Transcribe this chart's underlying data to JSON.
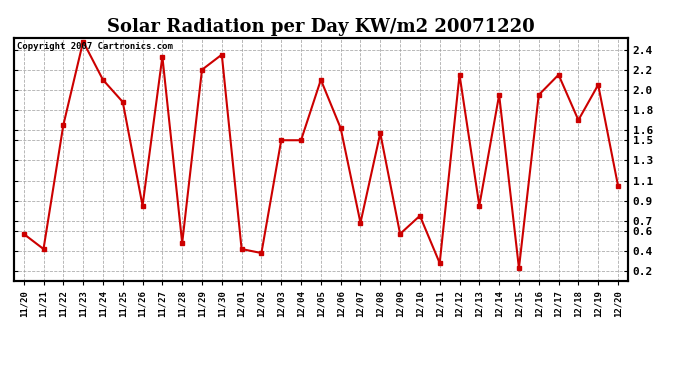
{
  "title": "Solar Radiation per Day KW/m2 20071220",
  "copyright_text": "Copyright 2007 Cartronics.com",
  "x_labels": [
    "11/20",
    "11/21",
    "11/22",
    "11/23",
    "11/24",
    "11/25",
    "11/26",
    "11/27",
    "11/28",
    "11/29",
    "11/30",
    "12/01",
    "12/02",
    "12/03",
    "12/04",
    "12/05",
    "12/06",
    "12/07",
    "12/08",
    "12/09",
    "12/10",
    "12/11",
    "12/12",
    "12/13",
    "12/14",
    "12/15",
    "12/16",
    "12/17",
    "12/18",
    "12/19",
    "12/20"
  ],
  "y_values": [
    0.57,
    0.42,
    1.65,
    2.48,
    2.1,
    1.88,
    0.85,
    2.33,
    0.48,
    2.2,
    2.35,
    0.42,
    0.38,
    1.5,
    1.5,
    2.1,
    1.62,
    0.68,
    1.57,
    0.57,
    0.75,
    0.28,
    2.15,
    0.85,
    1.95,
    0.23,
    1.95,
    2.15,
    1.7,
    2.05,
    1.05
  ],
  "line_color": "#cc0000",
  "marker_color": "#cc0000",
  "bg_color": "#ffffff",
  "grid_color": "#999999",
  "title_fontsize": 13,
  "yticks": [
    0.2,
    0.4,
    0.6,
    0.7,
    0.9,
    1.1,
    1.3,
    1.5,
    1.6,
    1.8,
    2.0,
    2.2,
    2.4
  ],
  "ylim_min": 0.1,
  "ylim_max": 2.52
}
